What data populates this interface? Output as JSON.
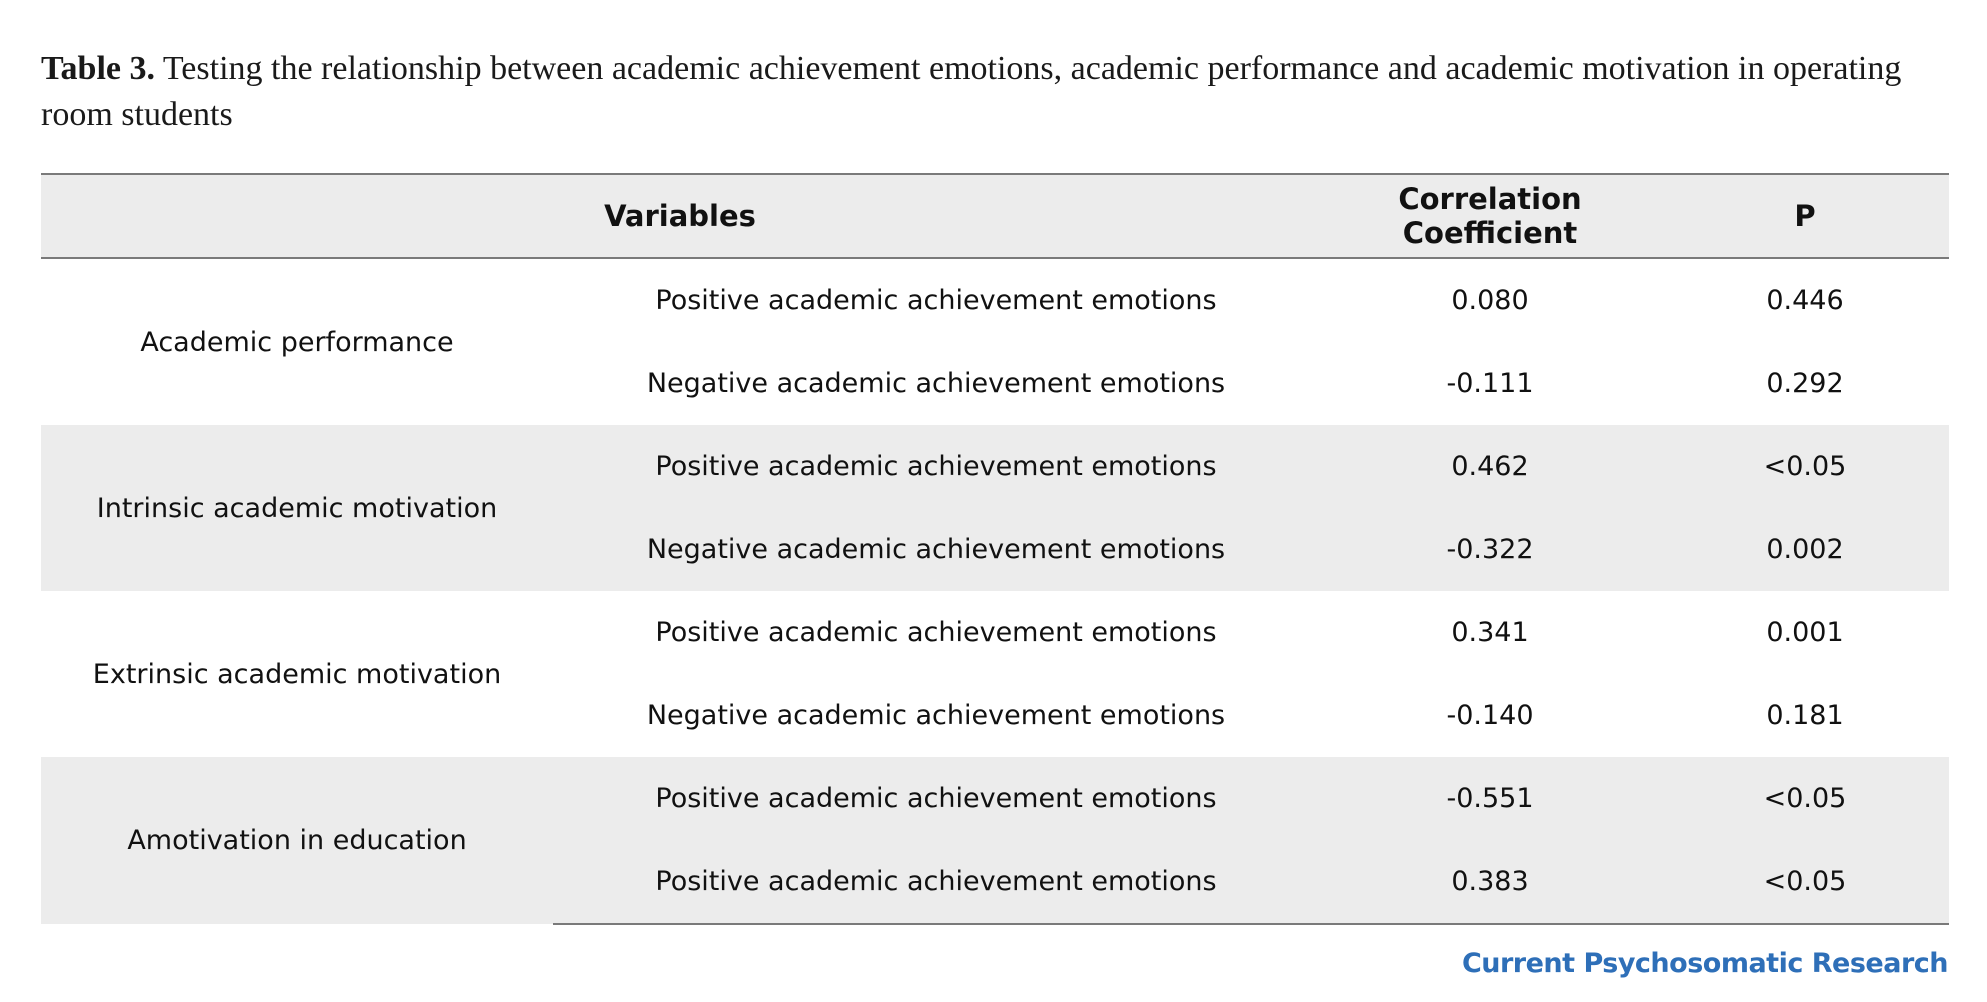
{
  "caption": {
    "label": "Table 3.",
    "text": " Testing the relationship between academic achievement emotions, academic performance and academic motivation in operating room students"
  },
  "table": {
    "headers": {
      "variables": "Variables",
      "correlation": "Correlation Coefficient",
      "p": "P"
    },
    "groups": [
      {
        "name": "Academic performance",
        "rows": [
          {
            "emotion": "Positive academic achievement emotions",
            "r": "0.080",
            "p": "0.446"
          },
          {
            "emotion": "Negative academic achievement emotions",
            "r": "-0.111",
            "p": "0.292"
          }
        ]
      },
      {
        "name": "Intrinsic academic motivation",
        "rows": [
          {
            "emotion": "Positive academic achievement emotions",
            "r": "0.462",
            "p": "<0.05"
          },
          {
            "emotion": "Negative academic achievement emotions",
            "r": "-0.322",
            "p": "0.002"
          }
        ]
      },
      {
        "name": "Extrinsic academic motivation",
        "rows": [
          {
            "emotion": "Positive academic achievement emotions",
            "r": "0.341",
            "p": "0.001"
          },
          {
            "emotion": "Negative academic achievement emotions",
            "r": "-0.140",
            "p": "0.181"
          }
        ]
      },
      {
        "name": "Amotivation in education",
        "rows": [
          {
            "emotion": "Positive academic achievement emotions",
            "r": "-0.551",
            "p": "<0.05"
          },
          {
            "emotion": "Positive academic achievement emotions",
            "r": "0.383",
            "p": "<0.05"
          }
        ]
      }
    ]
  },
  "footer": {
    "journal": "Current Psychosomatic Research"
  },
  "colors": {
    "header_bg": "#ececec",
    "rule": "#7a7a7a",
    "journal": "#2e6fb8"
  }
}
